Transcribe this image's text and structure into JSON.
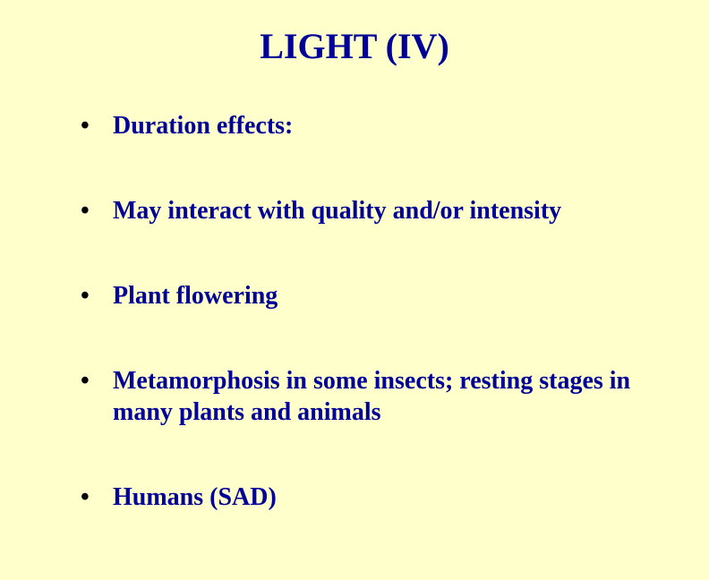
{
  "slide": {
    "title": "LIGHT  (IV)",
    "background_color": "#ffffcc",
    "text_color": "#000099",
    "bullet_color": "#000000",
    "title_fontsize": 40,
    "body_fontsize": 28,
    "font_family": "Times New Roman",
    "bullets": [
      {
        "text": "Duration effects:"
      },
      {
        "text": "May interact with quality and/or intensity"
      },
      {
        "text": "Plant flowering"
      },
      {
        "text": "Metamorphosis in some insects;  resting stages in many plants and animals"
      },
      {
        "text": "Humans (SAD)"
      }
    ]
  }
}
